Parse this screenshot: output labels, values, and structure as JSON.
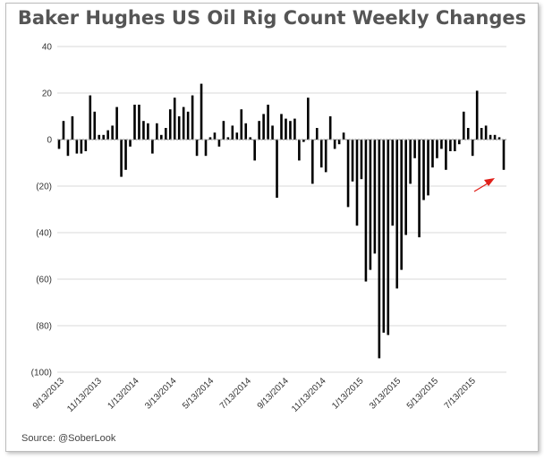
{
  "chart_data": {
    "type": "bar",
    "title": "Baker Hughes US Oil Rig Count Weekly Changes",
    "xlabel": "",
    "ylabel": "",
    "ylim": [
      -100,
      40
    ],
    "yticks": [
      40,
      20,
      0,
      -20,
      -40,
      -60,
      -80,
      -100
    ],
    "ytick_labels": [
      "40",
      "20",
      "0",
      "(20)",
      "(40)",
      "(60)",
      "(80)",
      "(100)"
    ],
    "xtick_labels": [
      "9/13/2013",
      "11/13/2013",
      "1/13/2014",
      "3/13/2014",
      "5/13/2014",
      "7/13/2014",
      "9/13/2014",
      "11/13/2014",
      "1/13/2015",
      "3/13/2015",
      "5/13/2015",
      "7/13/2015"
    ],
    "grid": "horizontal",
    "bar_color": "#000000",
    "values": [
      -4,
      8,
      -7,
      10,
      -6,
      -6,
      -5,
      19,
      12,
      2,
      2,
      4,
      6,
      14,
      -16,
      -13,
      -3,
      15,
      15,
      8,
      7,
      -6,
      7,
      2,
      5,
      13,
      18,
      10,
      14,
      12,
      19,
      -7,
      24,
      -7,
      1,
      3,
      -3,
      8,
      1,
      6,
      3,
      13,
      7,
      1,
      -9,
      8,
      11,
      15,
      6,
      -25,
      11,
      9,
      8,
      9,
      -9,
      -1,
      18,
      -19,
      5,
      -12,
      -14,
      10,
      -4,
      -2,
      3,
      -29,
      -18,
      -37,
      -17,
      -61,
      -56,
      -49,
      -94,
      -83,
      -84,
      -37,
      -64,
      -56,
      -41,
      -19,
      -8,
      -42,
      -26,
      -24,
      -12,
      -8,
      -4,
      -13,
      -5,
      -5,
      -2,
      12,
      5,
      -7,
      21,
      5,
      6,
      2,
      2,
      1,
      -13
    ],
    "annotation": {
      "type": "arrow",
      "color": "#e0201a"
    },
    "source": "Source: @SoberLook"
  }
}
